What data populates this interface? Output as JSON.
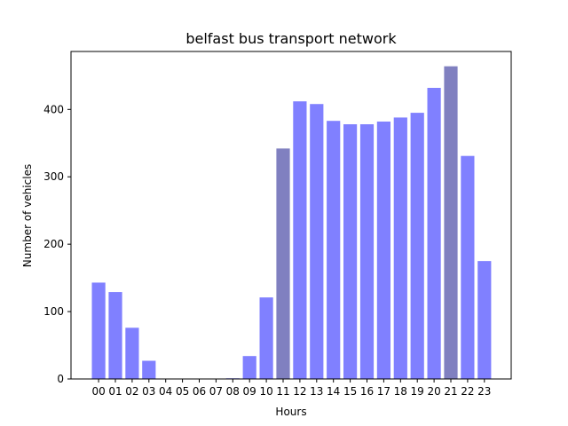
{
  "chart_data": {
    "type": "bar",
    "title": "belfast bus transport network",
    "xlabel": "Hours",
    "ylabel": "Number of vehicles",
    "categories": [
      "00",
      "01",
      "02",
      "03",
      "04",
      "05",
      "06",
      "07",
      "08",
      "09",
      "10",
      "11",
      "12",
      "13",
      "14",
      "15",
      "16",
      "17",
      "18",
      "19",
      "20",
      "21",
      "22",
      "23"
    ],
    "values": [
      143,
      129,
      76,
      27,
      0,
      0,
      0,
      0,
      1,
      34,
      121,
      342,
      412,
      408,
      383,
      378,
      378,
      382,
      388,
      395,
      432,
      464,
      331,
      175
    ],
    "highlighted": [
      "11",
      "21"
    ],
    "bar_color": "#8080ff",
    "highlight_color": "#8080c0",
    "ylim": [
      0,
      486
    ],
    "yticks": [
      0,
      100,
      200,
      300,
      400
    ],
    "grid": false,
    "legend": "none"
  }
}
